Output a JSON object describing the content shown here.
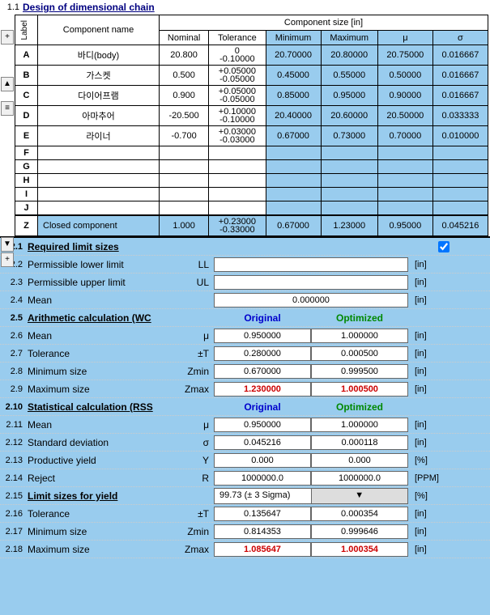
{
  "section1": {
    "number": "1.1",
    "title": "Design of dimensional chain",
    "label_header": "Label",
    "comp_name_header": "Component name",
    "size_header": "Component size [in]",
    "cols": {
      "nominal": "Nominal",
      "tolerance": "Tolerance",
      "minimum": "Minimum",
      "maximum": "Maximum",
      "mu": "μ",
      "sigma": "σ"
    },
    "rows": [
      {
        "label": "A",
        "name": "바디(body)",
        "nominal": "20.800",
        "tol_upper": "0",
        "tol_lower": "-0.10000",
        "min": "20.70000",
        "max": "20.80000",
        "mu": "20.75000",
        "sigma": "0.016667"
      },
      {
        "label": "B",
        "name": "가스켓",
        "nominal": "0.500",
        "tol_upper": "+0.05000",
        "tol_lower": "-0.05000",
        "min": "0.45000",
        "max": "0.55000",
        "mu": "0.50000",
        "sigma": "0.016667"
      },
      {
        "label": "C",
        "name": "다이어프램",
        "nominal": "0.900",
        "tol_upper": "+0.05000",
        "tol_lower": "-0.05000",
        "min": "0.85000",
        "max": "0.95000",
        "mu": "0.90000",
        "sigma": "0.016667"
      },
      {
        "label": "D",
        "name": "아마추어",
        "nominal": "-20.500",
        "tol_upper": "+0.10000",
        "tol_lower": "-0.10000",
        "min": "20.40000",
        "max": "20.60000",
        "mu": "20.50000",
        "sigma": "0.033333"
      },
      {
        "label": "E",
        "name": "라이너",
        "nominal": "-0.700",
        "tol_upper": "+0.03000",
        "tol_lower": "-0.03000",
        "min": "0.67000",
        "max": "0.73000",
        "mu": "0.70000",
        "sigma": "0.010000"
      },
      {
        "label": "F",
        "name": "",
        "nominal": "",
        "tol_upper": "",
        "tol_lower": "",
        "min": "",
        "max": "",
        "mu": "",
        "sigma": ""
      },
      {
        "label": "G",
        "name": "",
        "nominal": "",
        "tol_upper": "",
        "tol_lower": "",
        "min": "",
        "max": "",
        "mu": "",
        "sigma": ""
      },
      {
        "label": "H",
        "name": "",
        "nominal": "",
        "tol_upper": "",
        "tol_lower": "",
        "min": "",
        "max": "",
        "mu": "",
        "sigma": ""
      },
      {
        "label": "I",
        "name": "",
        "nominal": "",
        "tol_upper": "",
        "tol_lower": "",
        "min": "",
        "max": "",
        "mu": "",
        "sigma": ""
      },
      {
        "label": "J",
        "name": "",
        "nominal": "",
        "tol_upper": "",
        "tol_lower": "",
        "min": "",
        "max": "",
        "mu": "",
        "sigma": ""
      }
    ],
    "z_row": {
      "label": "Z",
      "name": "Closed component",
      "nominal": "1.000",
      "tol_upper": "+0.23000",
      "tol_lower": "-0.33000",
      "min": "0.67000",
      "max": "1.23000",
      "mu": "0.95000",
      "sigma": "0.045216"
    },
    "controls": {
      "plus": "+",
      "up": "▲",
      "scroll": "≡",
      "down": "▼"
    }
  },
  "section2": {
    "req_limit": {
      "num": "2.1",
      "label": "Required limit sizes"
    },
    "ll": {
      "num": "2.2",
      "label": "Permissible lower limit",
      "sym": "LL",
      "val": "",
      "unit": "[in]"
    },
    "ul": {
      "num": "2.3",
      "label": "Permissible upper limit",
      "sym": "UL",
      "val": "",
      "unit": "[in]"
    },
    "mean": {
      "num": "2.4",
      "label": "Mean",
      "sym": "",
      "val": "0.000000",
      "unit": "[in]"
    },
    "wc_header": {
      "num": "2.5",
      "label": "Arithmetic calculation (WC",
      "orig": "Original",
      "opt": "Optimized"
    },
    "wc_rows": [
      {
        "num": "2.6",
        "label": "Mean",
        "sym": "μ",
        "orig": "0.950000",
        "opt": "1.000000",
        "unit": "[in]",
        "red": false
      },
      {
        "num": "2.7",
        "label": "Tolerance",
        "sym": "±T",
        "orig": "0.280000",
        "opt": "0.000500",
        "unit": "[in]",
        "red": false
      },
      {
        "num": "2.8",
        "label": "Minimum size",
        "sym": "Zmin",
        "orig": "0.670000",
        "opt": "0.999500",
        "unit": "[in]",
        "red": false
      },
      {
        "num": "2.9",
        "label": "Maximum size",
        "sym": "Zmax",
        "orig": "1.230000",
        "opt": "1.000500",
        "unit": "[in]",
        "red": true
      }
    ],
    "rss_header": {
      "num": "2.10",
      "label": "Statistical calculation (RSS",
      "orig": "Original",
      "opt": "Optimized"
    },
    "rss_rows": [
      {
        "num": "2.11",
        "label": "Mean",
        "sym": "μ",
        "orig": "0.950000",
        "opt": "1.000000",
        "unit": "[in]",
        "red": false
      },
      {
        "num": "2.12",
        "label": "Standard deviation",
        "sym": "σ",
        "orig": "0.045216",
        "opt": "0.000118",
        "unit": "[in]",
        "red": false
      },
      {
        "num": "2.13",
        "label": "Productive yield",
        "sym": "Y",
        "orig": "0.000",
        "opt": "0.000",
        "unit": "[%]",
        "red": false
      },
      {
        "num": "2.14",
        "label": "Reject",
        "sym": "R",
        "orig": "1000000.0",
        "opt": "1000000.0",
        "unit": "[PPM]",
        "red": false
      }
    ],
    "limit_yield": {
      "num": "2.15",
      "label": "Limit sizes for yield",
      "val": "99.73  (± 3 Sigma)",
      "unit": "[%]"
    },
    "yield_rows": [
      {
        "num": "2.16",
        "label": "Tolerance",
        "sym": "±T",
        "orig": "0.135647",
        "opt": "0.000354",
        "unit": "[in]",
        "red": false
      },
      {
        "num": "2.17",
        "label": "Minimum size",
        "sym": "Zmin",
        "orig": "0.814353",
        "opt": "0.999646",
        "unit": "[in]",
        "red": false
      },
      {
        "num": "2.18",
        "label": "Maximum size",
        "sym": "Zmax",
        "orig": "1.085647",
        "opt": "1.000354",
        "unit": "[in]",
        "red": true
      }
    ]
  }
}
